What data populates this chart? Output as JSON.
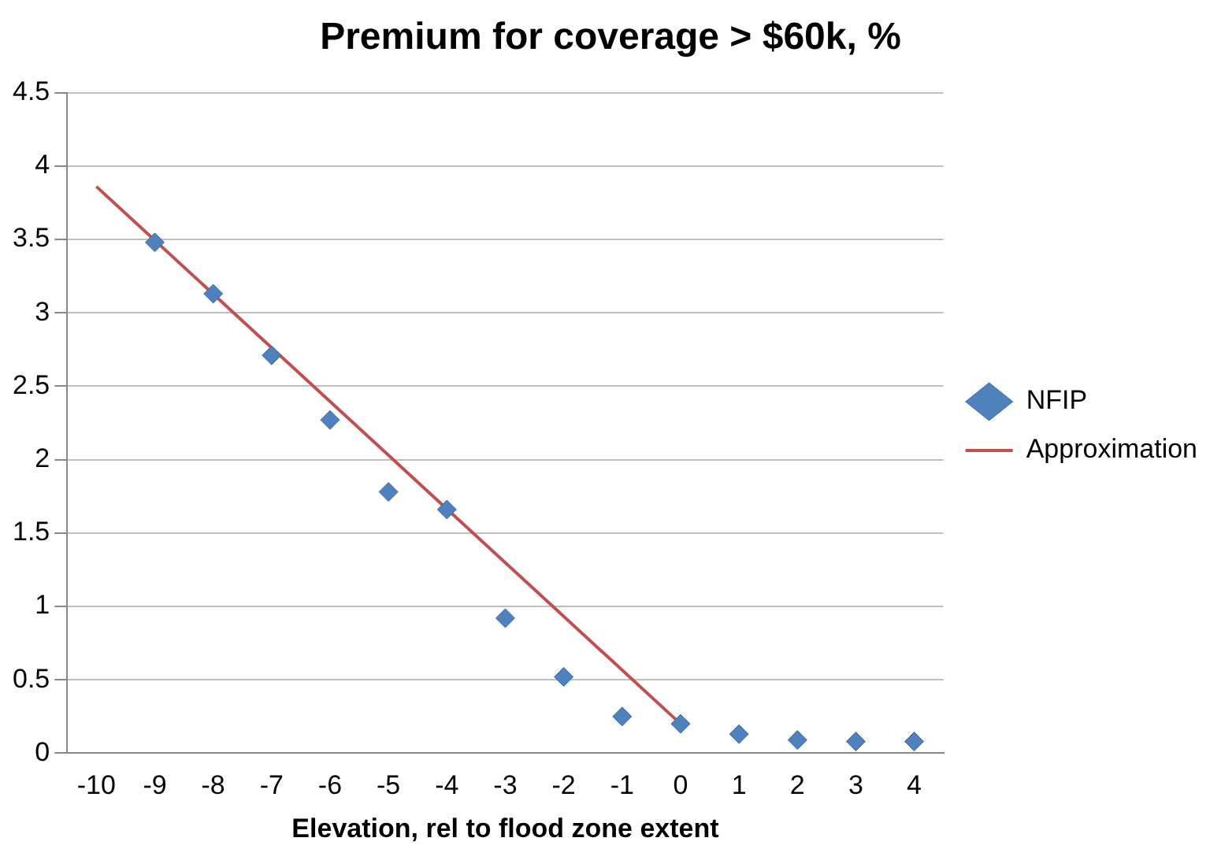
{
  "chart_data": {
    "type": "scatter",
    "title": "Premium for coverage > $60k, %",
    "xlabel": "Elevation, rel to flood zone extent",
    "xlim": [
      -10.5,
      4.5
    ],
    "xticks": [
      -10,
      -9,
      -8,
      -7,
      -6,
      -5,
      -4,
      -3,
      -2,
      -1,
      0,
      1,
      2,
      3,
      4
    ],
    "ylim": [
      0,
      4.5
    ],
    "yticks": [
      0,
      0.5,
      1,
      1.5,
      2,
      2.5,
      3,
      3.5,
      4,
      4.5
    ],
    "grid": "y",
    "legend": "right",
    "series": [
      {
        "name": "NFIP",
        "type": "scatter",
        "color": "#4f81bd",
        "marker": "diamond",
        "x": [
          -9,
          -8,
          -7,
          -6,
          -5,
          -4,
          -3,
          -2,
          -1,
          0,
          1,
          2,
          3,
          4
        ],
        "values": [
          3.48,
          3.13,
          2.71,
          2.27,
          1.78,
          1.66,
          0.92,
          0.52,
          0.25,
          0.2,
          0.13,
          0.09,
          0.08,
          0.08
        ]
      },
      {
        "name": "Approximation",
        "type": "line",
        "color": "#c0504d",
        "marker": "none",
        "x": [
          -10,
          0
        ],
        "values": [
          3.86,
          0.2
        ]
      }
    ]
  }
}
